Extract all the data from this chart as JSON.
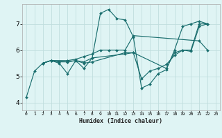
{
  "title": "",
  "xlabel": "Humidex (Indice chaleur)",
  "background_color": "#dff4f4",
  "grid_color": "#c0dede",
  "line_color": "#1a6e6e",
  "xlim": [
    -0.5,
    23.5
  ],
  "ylim": [
    3.7,
    7.75
  ],
  "yticks": [
    4,
    5,
    6,
    7
  ],
  "xticks": [
    0,
    1,
    2,
    3,
    4,
    5,
    6,
    7,
    8,
    9,
    10,
    11,
    12,
    13,
    14,
    15,
    16,
    17,
    18,
    19,
    20,
    21,
    22,
    23
  ],
  "lines": [
    {
      "x": [
        0,
        1,
        2,
        3,
        4,
        5,
        6,
        7,
        8,
        9,
        10,
        11,
        12,
        13,
        14,
        15,
        16,
        17,
        18,
        19,
        20,
        21,
        22
      ],
      "y": [
        4.2,
        5.2,
        5.5,
        5.6,
        5.5,
        5.1,
        5.6,
        5.3,
        5.7,
        7.4,
        7.55,
        7.2,
        7.15,
        6.5,
        4.55,
        4.7,
        5.1,
        5.25,
        6.0,
        6.9,
        7.0,
        7.1,
        7.0
      ]
    },
    {
      "x": [
        2,
        3,
        5,
        6,
        7,
        8,
        9,
        10,
        11,
        12,
        13,
        21,
        22
      ],
      "y": [
        5.5,
        5.6,
        5.6,
        5.65,
        5.75,
        5.85,
        6.0,
        6.0,
        6.0,
        6.0,
        6.55,
        6.35,
        6.0
      ]
    },
    {
      "x": [
        2,
        3,
        5,
        6,
        7,
        8,
        12,
        13,
        17,
        18,
        19,
        20,
        21,
        22
      ],
      "y": [
        5.5,
        5.6,
        5.55,
        5.6,
        5.55,
        5.7,
        5.85,
        5.9,
        5.3,
        5.9,
        6.0,
        6.0,
        7.0,
        7.0
      ]
    },
    {
      "x": [
        2,
        3,
        4,
        5,
        6,
        7,
        8,
        12,
        13,
        14,
        15,
        16,
        17,
        18,
        19,
        20,
        21,
        22
      ],
      "y": [
        5.5,
        5.6,
        5.55,
        5.55,
        5.6,
        5.5,
        5.55,
        5.9,
        5.9,
        4.9,
        5.2,
        5.3,
        5.45,
        5.8,
        6.0,
        5.95,
        6.9,
        7.0
      ]
    }
  ]
}
